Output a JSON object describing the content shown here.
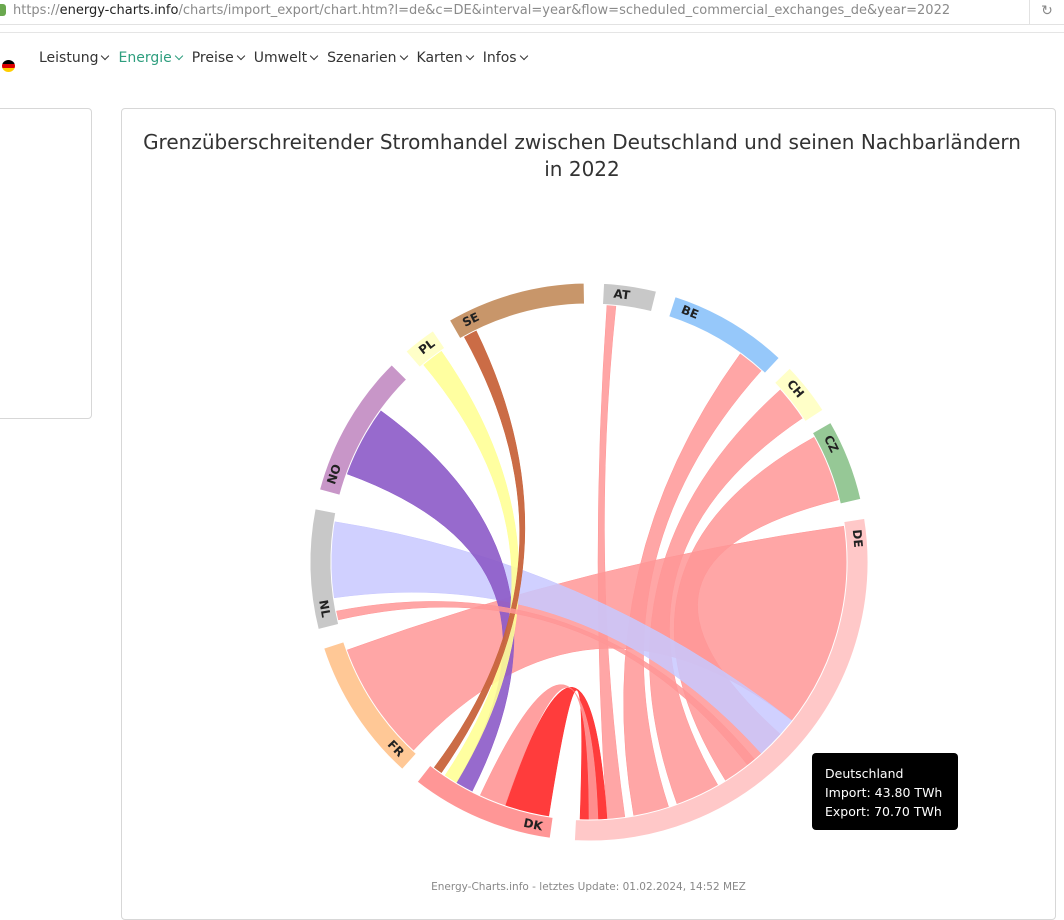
{
  "browser": {
    "url_prefix": "https://",
    "url_domain": "energy-charts.info",
    "url_path": "/charts/import_export/chart.htm?l=de&c=DE&interval=year&flow=scheduled_commercial_exchanges_de&year=2022",
    "reload_icon": "reload-icon"
  },
  "nav": {
    "items": [
      {
        "label": "Leistung",
        "active": false
      },
      {
        "label": "Energie",
        "active": true
      },
      {
        "label": "Preise",
        "active": false
      },
      {
        "label": "Umwelt",
        "active": false
      },
      {
        "label": "Szenarien",
        "active": false
      },
      {
        "label": "Karten",
        "active": false
      },
      {
        "label": "Infos",
        "active": false
      }
    ],
    "accent": "#2e9e7e"
  },
  "chart_data": {
    "type": "chord",
    "title": "Grenzüberschreitender Stromhandel zwischen Deutschland und seinen Nachbarländern in 2022",
    "groups": [
      {
        "name": "AT",
        "color": "#c8c8c8"
      },
      {
        "name": "BE",
        "color": "#96c8fa"
      },
      {
        "name": "CH",
        "color": "#ffffc8"
      },
      {
        "name": "CZ",
        "color": "#96c896"
      },
      {
        "name": "DE",
        "color": "#ffc8c8"
      },
      {
        "name": "DK",
        "color": "#ff9696"
      },
      {
        "name": "FR",
        "color": "#ffc896"
      },
      {
        "name": "NL",
        "color": "#c8c8c8"
      },
      {
        "name": "NO",
        "color": "#c896c8"
      },
      {
        "name": "PL",
        "color": "#ffffc8"
      },
      {
        "name": "SE",
        "color": "#c8966a"
      }
    ],
    "highlight": {
      "name": "Deutschland",
      "import": "43.80 TWh",
      "export": "70.70 TWh"
    }
  },
  "tooltip": {
    "title": "Deutschland",
    "import_line": "Import: 43.80 TWh",
    "export_line": "Export: 70.70 TWh"
  },
  "footer": {
    "text": "Energy-Charts.info - letztes Update: 01.02.2024, 14:52 MEZ"
  }
}
